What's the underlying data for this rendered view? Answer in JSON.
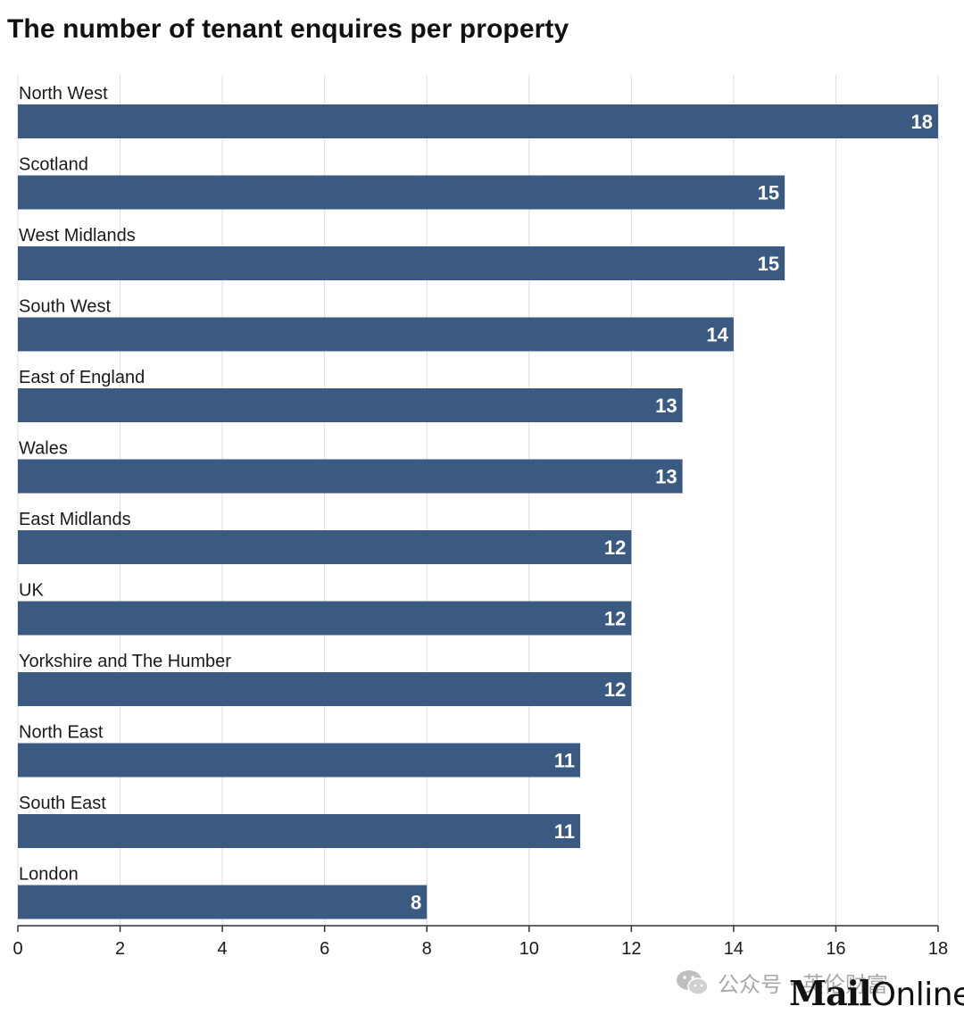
{
  "chart_data": {
    "type": "bar",
    "orientation": "horizontal",
    "title": "The number of tenant enquires per property",
    "categories": [
      "North West",
      "Scotland",
      "West Midlands",
      "South West",
      "East of England",
      "Wales",
      "East Midlands",
      "UK",
      "Yorkshire and The Humber",
      "North East",
      "South East",
      "London"
    ],
    "values": [
      18,
      15,
      15,
      14,
      13,
      13,
      12,
      12,
      12,
      11,
      11,
      8
    ],
    "xlim": [
      0,
      18
    ],
    "xticks": [
      0,
      2,
      4,
      6,
      8,
      10,
      12,
      14,
      16,
      18
    ],
    "xlabel": "",
    "ylabel": "",
    "grid": "vertical",
    "data_labels": "inside-end",
    "colors": {
      "bar": "#3b5a82",
      "gridline": "#dddddd",
      "axis": "#333333"
    }
  },
  "watermark": {
    "text": "公众号 · 英伦财富",
    "icon": "wechat-icon"
  },
  "logo": {
    "part1": "Mail",
    "part2": "Online"
  }
}
